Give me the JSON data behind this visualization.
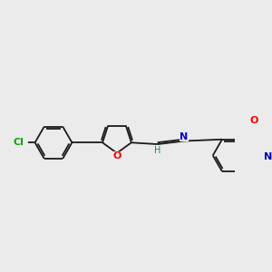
{
  "bg_color": "#ebebeb",
  "bond_color": "#1a1a1a",
  "atom_colors": {
    "Cl": "#00aa00",
    "O": "#ff0000",
    "N": "#0000cc",
    "H": "#008888",
    "C": "#1a1a1a"
  },
  "lw": 1.3,
  "figsize": [
    3.0,
    3.0
  ],
  "dpi": 100
}
